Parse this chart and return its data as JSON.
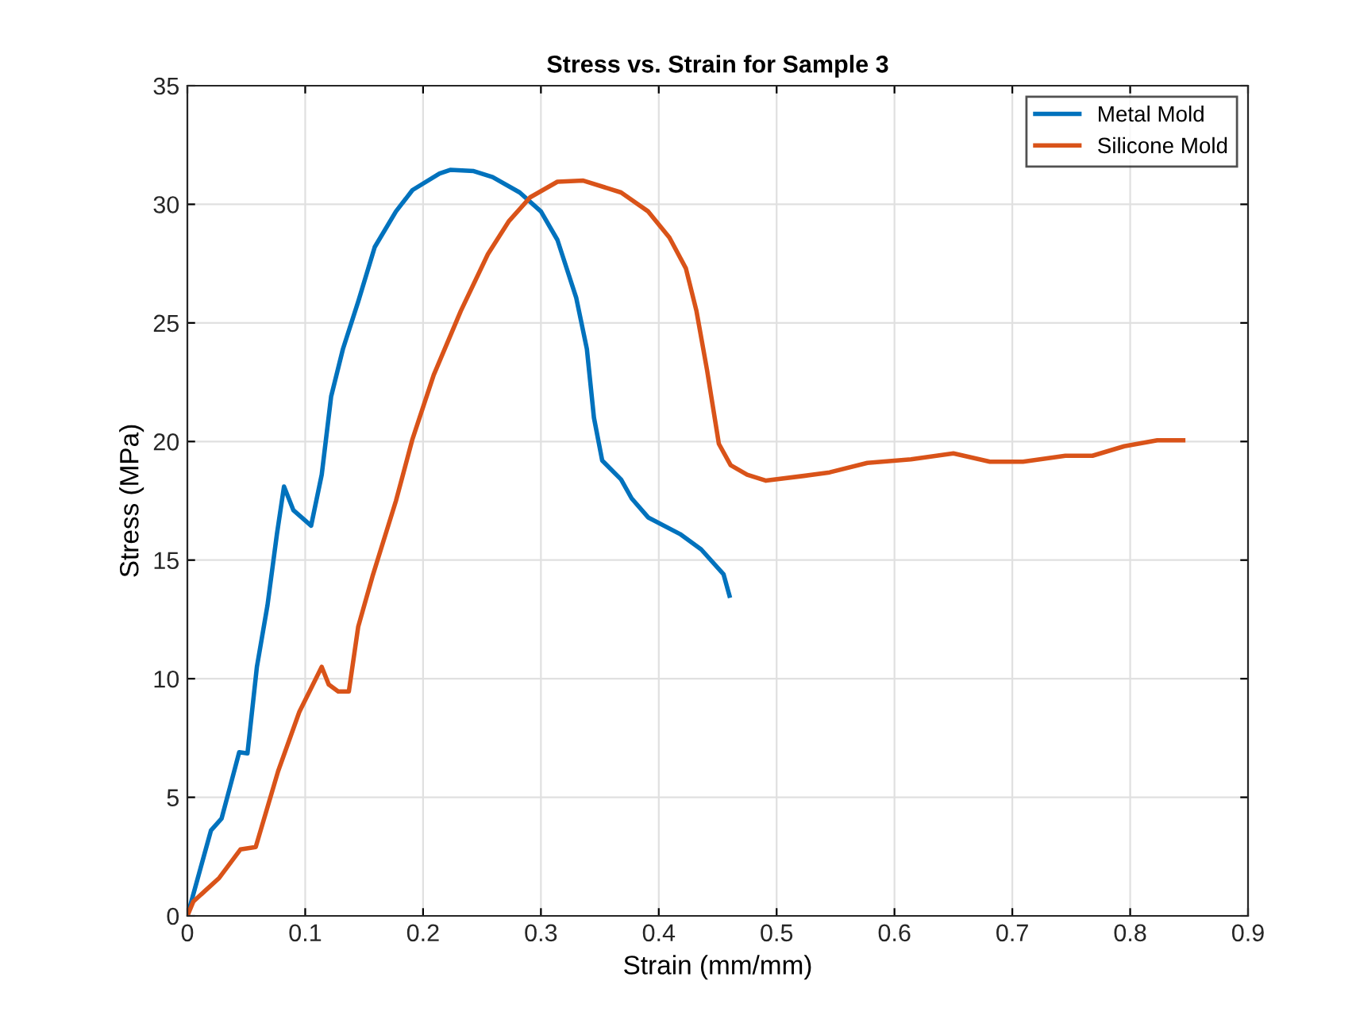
{
  "chart_data": {
    "type": "line",
    "title": "Stress vs. Strain for Sample 3",
    "xlabel": "Strain (mm/mm)",
    "ylabel": "Stress (MPa)",
    "xlim": [
      0,
      0.9
    ],
    "ylim": [
      0,
      35
    ],
    "xticks": [
      0,
      0.1,
      0.2,
      0.3,
      0.4,
      0.5,
      0.6,
      0.7,
      0.8,
      0.9
    ],
    "yticks": [
      0,
      5,
      10,
      15,
      20,
      25,
      30,
      35
    ],
    "grid": true,
    "legend": "top right",
    "marker": "none",
    "line_style": "solid",
    "series": [
      {
        "name": "Metal Mold",
        "color": "#0072bd",
        "x": [
          0,
          0.02,
          0.029,
          0.036,
          0.044,
          0.051,
          0.059,
          0.068,
          0.076,
          0.082,
          0.09,
          0.105,
          0.114,
          0.122,
          0.132,
          0.145,
          0.159,
          0.177,
          0.191,
          0.214,
          0.223,
          0.243,
          0.259,
          0.282,
          0.3,
          0.314,
          0.33,
          0.339,
          0.345,
          0.352,
          0.368,
          0.377,
          0.391,
          0.418,
          0.436,
          0.455,
          0.46
        ],
        "values": [
          0,
          3.6,
          4.1,
          5.4,
          6.9,
          6.85,
          10.5,
          13.1,
          16.1,
          18.1,
          17.1,
          16.45,
          18.6,
          21.9,
          23.9,
          25.9,
          28.2,
          29.7,
          30.6,
          31.3,
          31.45,
          31.4,
          31.15,
          30.5,
          29.7,
          28.5,
          26.05,
          23.9,
          21,
          19.2,
          18.4,
          17.6,
          16.8,
          16.1,
          15.45,
          14.4,
          13.5
        ]
      },
      {
        "name": "Silicone Mold",
        "color": "#d95319",
        "x": [
          0,
          0.005,
          0.027,
          0.045,
          0.058,
          0.077,
          0.095,
          0.114,
          0.12,
          0.128,
          0.137,
          0.145,
          0.157,
          0.177,
          0.191,
          0.209,
          0.232,
          0.255,
          0.273,
          0.291,
          0.314,
          0.336,
          0.368,
          0.391,
          0.409,
          0.423,
          0.432,
          0.441,
          0.451,
          0.461,
          0.475,
          0.491,
          0.523,
          0.545,
          0.577,
          0.614,
          0.65,
          0.681,
          0.709,
          0.745,
          0.768,
          0.795,
          0.823,
          0.845
        ],
        "values": [
          0,
          0.6,
          1.6,
          2.8,
          2.9,
          6.1,
          8.6,
          10.5,
          9.75,
          9.46,
          9.46,
          12.2,
          14.3,
          17.5,
          20.1,
          22.8,
          25.5,
          27.9,
          29.3,
          30.3,
          30.95,
          31,
          30.5,
          29.7,
          28.6,
          27.3,
          25.5,
          23,
          19.9,
          19,
          18.6,
          18.35,
          18.55,
          18.7,
          19.1,
          19.25,
          19.5,
          19.15,
          19.15,
          19.4,
          19.4,
          19.8,
          20.05,
          20.05
        ]
      }
    ]
  }
}
